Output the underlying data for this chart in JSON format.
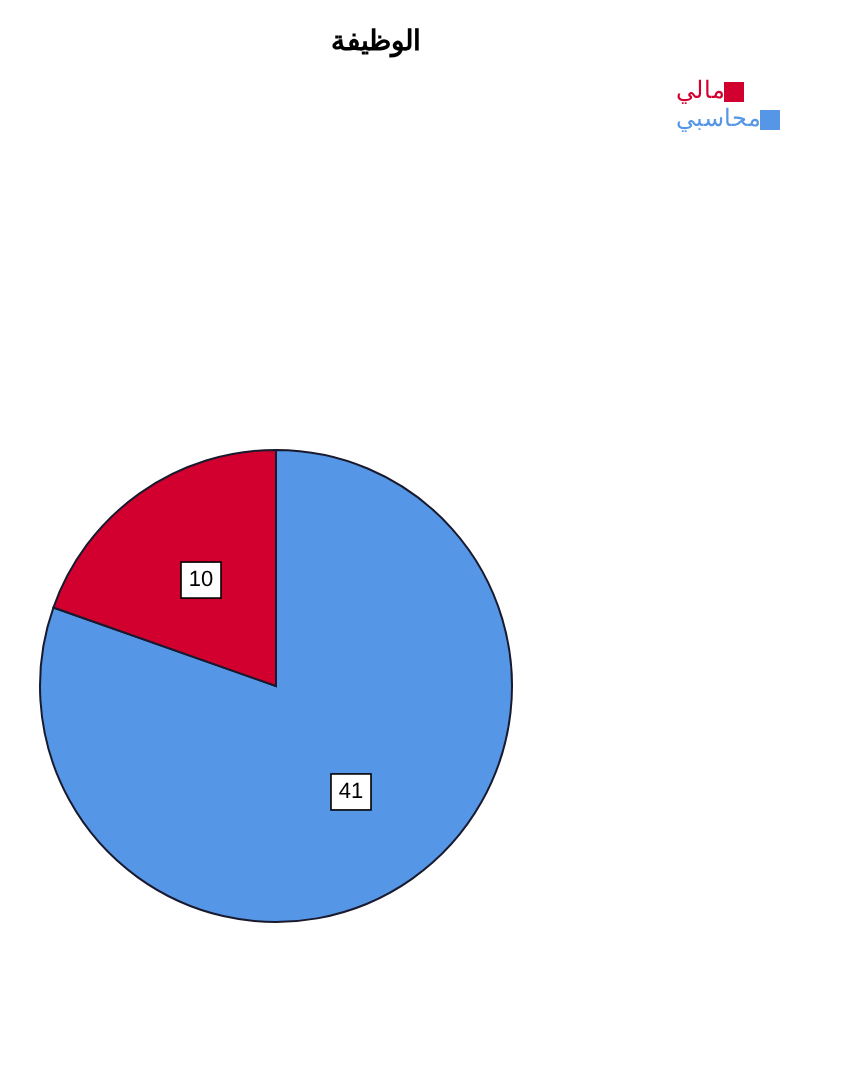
{
  "chart_data": {
    "type": "pie",
    "title": "الوظيفة",
    "categories": [
      "محاسبي",
      "مالي"
    ],
    "values": [
      41,
      10
    ],
    "colors": [
      "#5596e6",
      "#d2002e"
    ],
    "data_labels": true,
    "legend": "top right"
  }
}
